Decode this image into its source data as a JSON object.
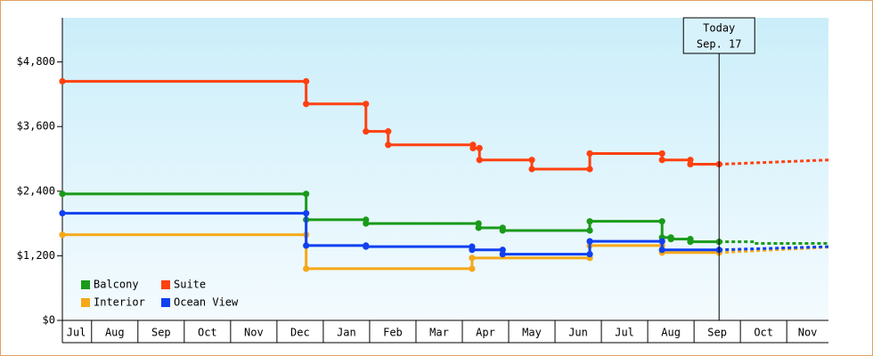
{
  "chart_data": {
    "type": "step-line",
    "xlim": [
      0.37,
      16.9
    ],
    "ylim": [
      0,
      5620
    ],
    "yticks": [
      {
        "value": 0,
        "label": "$0"
      },
      {
        "value": 1200,
        "label": "$1,200"
      },
      {
        "value": 2400,
        "label": "$2,400"
      },
      {
        "value": 3600,
        "label": "$3,600"
      },
      {
        "value": 4800,
        "label": "$4,800"
      }
    ],
    "xticks": [
      {
        "value": 0.67,
        "label": "Jul"
      },
      {
        "value": 1.5,
        "label": "Aug"
      },
      {
        "value": 2.5,
        "label": "Sep"
      },
      {
        "value": 3.5,
        "label": "Oct"
      },
      {
        "value": 4.5,
        "label": "Nov"
      },
      {
        "value": 5.5,
        "label": "Dec"
      },
      {
        "value": 6.5,
        "label": "Jan"
      },
      {
        "value": 7.5,
        "label": "Feb"
      },
      {
        "value": 8.5,
        "label": "Mar"
      },
      {
        "value": 9.5,
        "label": "Apr"
      },
      {
        "value": 10.5,
        "label": "May"
      },
      {
        "value": 11.5,
        "label": "Jun"
      },
      {
        "value": 12.5,
        "label": "Jul"
      },
      {
        "value": 13.5,
        "label": "Aug"
      },
      {
        "value": 14.5,
        "label": "Sep"
      },
      {
        "value": 15.5,
        "label": "Oct"
      },
      {
        "value": 16.45,
        "label": "Nov"
      }
    ],
    "annotation": {
      "x": 14.54,
      "lines": [
        "Today",
        "Sep. 17"
      ]
    },
    "series": [
      {
        "name": "Balcony",
        "color": "#1a9a1a",
        "x": [
          0.37,
          5.63,
          5.63,
          6.92,
          6.92,
          9.35,
          9.35,
          9.87,
          9.87,
          11.75,
          11.75,
          13.31,
          13.31,
          13.5,
          13.5,
          13.92,
          13.92,
          14.54
        ],
        "values": [
          2350,
          2350,
          1870,
          1870,
          1800,
          1800,
          1720,
          1720,
          1670,
          1670,
          1840,
          1840,
          1540,
          1540,
          1510,
          1510,
          1460,
          1460
        ],
        "forecast": {
          "x": [
            14.54,
            15.3,
            15.3,
            16.9
          ],
          "values": [
            1460,
            1460,
            1430,
            1430
          ]
        }
      },
      {
        "name": "Suite",
        "color": "#ff4010",
        "x": [
          0.37,
          5.63,
          5.63,
          6.92,
          6.92,
          7.4,
          7.4,
          9.23,
          9.23,
          9.37,
          9.37,
          10.5,
          10.5,
          11.75,
          11.75,
          13.31,
          13.31,
          13.92,
          13.92,
          14.54
        ],
        "values": [
          4440,
          4440,
          4020,
          4020,
          3510,
          3510,
          3260,
          3260,
          3200,
          3200,
          2980,
          2980,
          2810,
          2810,
          3100,
          3100,
          2980,
          2980,
          2900,
          2900
        ],
        "forecast": {
          "x": [
            14.54,
            16.9
          ],
          "values": [
            2900,
            2980
          ]
        }
      },
      {
        "name": "Interior",
        "color": "#f5a818",
        "x": [
          0.37,
          5.63,
          5.63,
          9.21,
          9.21,
          11.75,
          11.75,
          13.31,
          13.31,
          14.54
        ],
        "values": [
          1590,
          1590,
          960,
          960,
          1160,
          1160,
          1390,
          1390,
          1260,
          1260
        ],
        "forecast": {
          "x": [
            14.54,
            16.9
          ],
          "values": [
            1260,
            1360
          ]
        }
      },
      {
        "name": "Ocean View",
        "color": "#1040f0",
        "x": [
          0.37,
          5.63,
          5.63,
          6.92,
          6.92,
          9.21,
          9.21,
          9.87,
          9.87,
          11.75,
          11.75,
          13.31,
          13.31,
          14.54
        ],
        "values": [
          1990,
          1990,
          1390,
          1390,
          1370,
          1370,
          1310,
          1310,
          1230,
          1230,
          1470,
          1470,
          1310,
          1310
        ],
        "forecast": {
          "x": [
            14.54,
            16.9
          ],
          "values": [
            1310,
            1370
          ]
        }
      }
    ]
  }
}
